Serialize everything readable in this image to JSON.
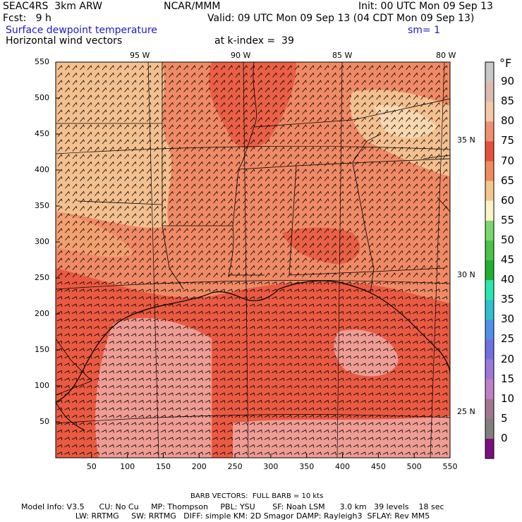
{
  "header": {
    "model": "SEAC4RS  3km ARW",
    "center": "NCAR/MMM",
    "init": "Init: 00 UTC Mon 09 Sep 13",
    "fcst": "Fcst:   9 h",
    "valid": "Valid: 09 UTC Mon 09 Sep 13 (04 CDT Mon 09 Sep 13)",
    "field1": "Surface dewpoint temperature",
    "sm": "sm= 1",
    "field2": "Horizontal wind vectors",
    "kindex": "at k-index =  39"
  },
  "map": {
    "y_ticks": [
      "550",
      "500",
      "450",
      "400",
      "350",
      "300",
      "250",
      "200",
      "150",
      "100",
      "50"
    ],
    "x_ticks": [
      "50",
      "100",
      "150",
      "200",
      "250",
      "300",
      "350",
      "400",
      "450",
      "500",
      "550"
    ],
    "lon_labels": [
      "95 W",
      "90 W",
      "85 W",
      "80 W"
    ],
    "lat_labels": [
      "35 N",
      "30 N",
      "25 N"
    ]
  },
  "colorbar": {
    "unit": "°F",
    "labels": [
      "90",
      "85",
      "80",
      "75",
      "70",
      "65",
      "60",
      "55",
      "50",
      "45",
      "40",
      "35",
      "30",
      "25",
      "20",
      "15",
      "10",
      "5",
      "0"
    ],
    "colors": [
      "#c8c8c8",
      "#dcbcb0",
      "#f4c8a4",
      "#f09070",
      "#e8503c",
      "#f08c5c",
      "#f4c88c",
      "#fff4c8",
      "#7cd86c",
      "#48c448",
      "#20b030",
      "#28e8b0",
      "#30c0d0",
      "#5090e8",
      "#7070e0",
      "#9c78d8",
      "#c080c8",
      "#a07890",
      "#808080",
      "#7c1080"
    ]
  },
  "footer": {
    "barb": "BARB VECTORS:  FULL BARB = 10 kts",
    "line1": "Model Info: V3.5      CU: No Cu     MP: Thompson     PBL: YSU       SF: Noah LSM      3.0 km   39 levels    18 sec",
    "line2": "                      LW: RRTMG     SW: RRTMG   DIFF: simple KM: 2D Smagor DAMP: Rayleigh3  SFLAY: Rev MM5"
  }
}
